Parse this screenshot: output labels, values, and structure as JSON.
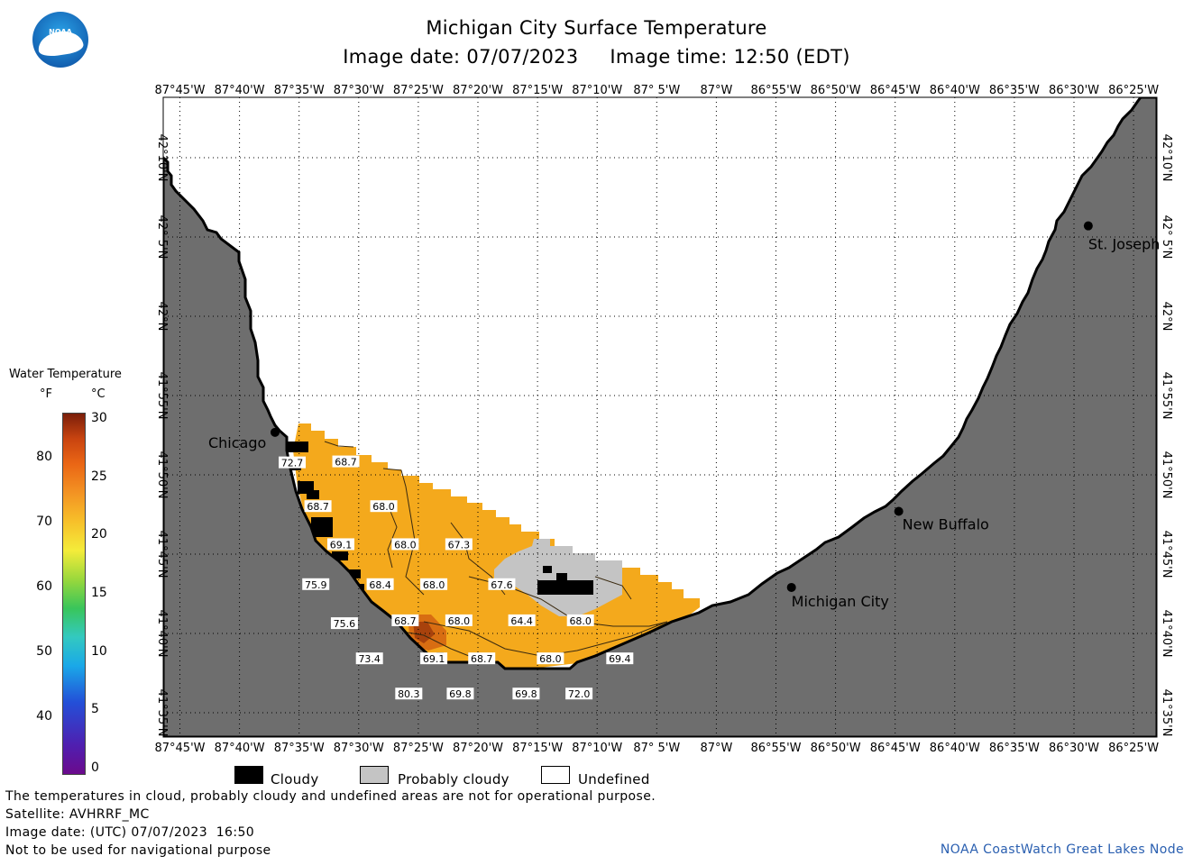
{
  "header": {
    "title": "Michigan City Surface Temperature",
    "subtitle": "Image date: 07/07/2023     Image time: 12:50 (EDT)"
  },
  "logo": {
    "text": "NOAA"
  },
  "map": {
    "lon_labels": [
      "87°45'W",
      "87°40'W",
      "87°35'W",
      "87°30'W",
      "87°25'W",
      "87°20'W",
      "87°15'W",
      "87°10'W",
      "87° 5'W",
      "87°W",
      "86°55'W",
      "86°50'W",
      "86°45'W",
      "86°40'W",
      "86°35'W",
      "86°30'W",
      "86°25'W"
    ],
    "lat_labels": [
      "42°10'N",
      "42° 5'N",
      "42°N",
      "41°55'N",
      "41°50'N",
      "41°45'N",
      "41°40'N",
      "41°35'N"
    ],
    "cities": [
      {
        "name": "Chicago",
        "lon": -87.617,
        "lat": 41.878
      },
      {
        "name": "Michigan City",
        "lon": -86.895,
        "lat": 41.715
      },
      {
        "name": "New Buffalo",
        "lon": -86.745,
        "lat": 41.795
      },
      {
        "name": "St. Joseph",
        "lon": -86.48,
        "lat": 42.095
      }
    ],
    "temperature_labels": [
      {
        "v": "72.7",
        "lon": -87.593,
        "lat": 41.846
      },
      {
        "v": "68.7",
        "lon": -87.518,
        "lat": 41.847
      },
      {
        "v": "68.7",
        "lon": -87.557,
        "lat": 41.8
      },
      {
        "v": "68.0",
        "lon": -87.465,
        "lat": 41.8
      },
      {
        "v": "69.1",
        "lon": -87.525,
        "lat": 41.76
      },
      {
        "v": "68.0",
        "lon": -87.435,
        "lat": 41.76
      },
      {
        "v": "67.3",
        "lon": -87.36,
        "lat": 41.76
      },
      {
        "v": "75.9",
        "lon": -87.56,
        "lat": 41.718
      },
      {
        "v": "68.4",
        "lon": -87.47,
        "lat": 41.718
      },
      {
        "v": "68.0",
        "lon": -87.395,
        "lat": 41.718
      },
      {
        "v": "67.6",
        "lon": -87.3,
        "lat": 41.718
      },
      {
        "v": "75.6",
        "lon": -87.52,
        "lat": 41.677
      },
      {
        "v": "68.7",
        "lon": -87.435,
        "lat": 41.68
      },
      {
        "v": "68.0",
        "lon": -87.36,
        "lat": 41.68
      },
      {
        "v": "64.4",
        "lon": -87.272,
        "lat": 41.68
      },
      {
        "v": "68.0",
        "lon": -87.19,
        "lat": 41.68
      },
      {
        "v": "73.4",
        "lon": -87.485,
        "lat": 41.64
      },
      {
        "v": "69.1",
        "lon": -87.395,
        "lat": 41.64
      },
      {
        "v": "68.7",
        "lon": -87.328,
        "lat": 41.64
      },
      {
        "v": "68.0",
        "lon": -87.232,
        "lat": 41.64
      },
      {
        "v": "69.4",
        "lon": -87.135,
        "lat": 41.64
      },
      {
        "v": "80.3",
        "lon": -87.43,
        "lat": 41.603
      },
      {
        "v": "69.8",
        "lon": -87.358,
        "lat": 41.603
      },
      {
        "v": "69.8",
        "lon": -87.266,
        "lat": 41.603
      },
      {
        "v": "72.0",
        "lon": -87.192,
        "lat": 41.603
      }
    ]
  },
  "legend": {
    "title": "Water Temperature",
    "unit_f": "°F",
    "unit_c": "°C",
    "f_ticks": [
      "80",
      "70",
      "60",
      "50",
      "40"
    ],
    "c_ticks": [
      "30",
      "25",
      "20",
      "15",
      "10",
      "5",
      "0"
    ],
    "colors": {
      "cloudy": "#000000",
      "probably_cloudy": "#c4c4c4",
      "undefined": "#ffffff",
      "land": "#6e6e6e",
      "water_warm": "#f4a91c"
    },
    "categories": [
      "Cloudy",
      "Probably cloudy",
      "Undefined"
    ]
  },
  "footer": {
    "note": "The temperatures in cloud, probably cloudy and undefined areas are not for operational purpose.",
    "satellite": "Satellite: AVHRRF_MC",
    "utc_date": "Image date: (UTC) 07/07/2023  16:50",
    "nav": "Not to be used for navigational purpose",
    "credit": "NOAA CoastWatch Great Lakes Node"
  }
}
